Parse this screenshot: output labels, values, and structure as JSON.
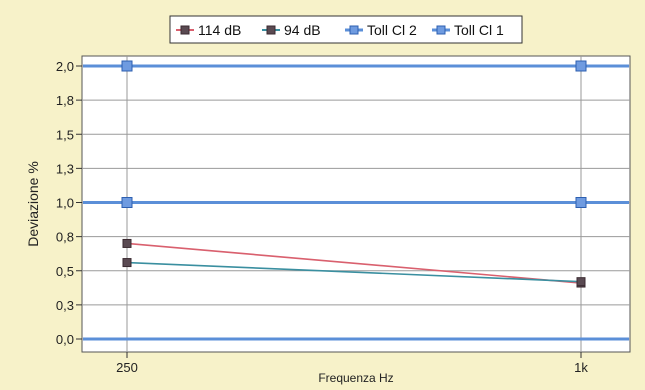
{
  "chart_data": {
    "type": "line",
    "x": [
      "250",
      "1k"
    ],
    "xlabel": "Frequenza Hz",
    "ylabel": "Deviazione %",
    "ylim": [
      0,
      2.0
    ],
    "y_ticks": [
      "0,0",
      "0,3",
      "0,5",
      "0,8",
      "1,0",
      "1,3",
      "1,5",
      "1,8",
      "2,0"
    ],
    "grid": true,
    "legend_position": "top",
    "series": [
      {
        "name": "114 dB",
        "values": [
          0.7,
          0.41
        ],
        "color": "#d9606e",
        "marker": "square"
      },
      {
        "name": "94 dB",
        "values": [
          0.56,
          0.42
        ],
        "color": "#3a8fa0",
        "marker": "square"
      },
      {
        "name": "Toll Cl 2",
        "values": [
          2.0,
          2.0
        ],
        "color": "#5b8fd8",
        "marker": "square"
      },
      {
        "name": "Toll Cl 1",
        "values": [
          1.0,
          1.0
        ],
        "color": "#5b8fd8",
        "marker": "square"
      }
    ],
    "baseline": {
      "value": 0.0,
      "color": "#5b8fd8"
    }
  },
  "colors": {
    "background": "#f7f2c9",
    "plot_background": "#ffffff",
    "grid": "#9a9a9a"
  }
}
